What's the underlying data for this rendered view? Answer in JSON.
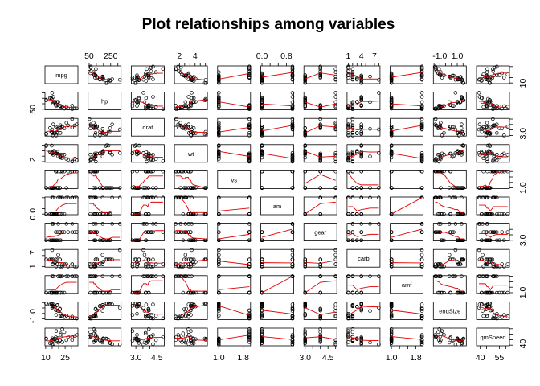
{
  "chart_data": {
    "type": "scatter",
    "subtype": "pairs-matrix-with-smoother",
    "title": "Plot relationships among variables",
    "variables": [
      "mpg",
      "hp",
      "drat",
      "wt",
      "vs",
      "am",
      "gear",
      "carb",
      "amf",
      "engSize",
      "qmSpeed"
    ],
    "ranges": {
      "mpg": [
        10.4,
        33.9
      ],
      "hp": [
        52,
        335
      ],
      "drat": [
        2.76,
        4.93
      ],
      "wt": [
        1.513,
        5.424
      ],
      "vs": [
        1,
        2
      ],
      "am": [
        0,
        1
      ],
      "gear": [
        3,
        5
      ],
      "carb": [
        1,
        8
      ],
      "amf": [
        1,
        2
      ],
      "engSize": [
        -1.6,
        1.9
      ],
      "qmSpeed": [
        38,
        62
      ]
    },
    "axis_ticks": [
      {
        "variable": "mpg",
        "side": "bottom",
        "labels": [
          "10",
          "25"
        ],
        "values": [
          10,
          25
        ]
      },
      {
        "variable": "hp",
        "side": "top",
        "labels": [
          "50",
          "250"
        ],
        "values": [
          50,
          250
        ]
      },
      {
        "variable": "drat",
        "side": "bottom",
        "labels": [
          "3.0",
          "4.5"
        ],
        "values": [
          3.0,
          4.5
        ]
      },
      {
        "variable": "wt",
        "side": "top",
        "labels": [
          "2",
          "4"
        ],
        "values": [
          2,
          4
        ]
      },
      {
        "variable": "vs",
        "side": "bottom",
        "labels": [
          "1.0",
          "1.8"
        ],
        "values": [
          1.0,
          1.8
        ]
      },
      {
        "variable": "am",
        "side": "top",
        "labels": [
          "0.0",
          "0.8"
        ],
        "values": [
          0.0,
          0.8
        ]
      },
      {
        "variable": "gear",
        "side": "bottom",
        "labels": [
          "3.0",
          "4.5"
        ],
        "values": [
          3.0,
          4.5
        ]
      },
      {
        "variable": "carb",
        "side": "top",
        "labels": [
          "1",
          "4",
          "7"
        ],
        "values": [
          1,
          4,
          7
        ]
      },
      {
        "variable": "amf",
        "side": "bottom",
        "labels": [
          "1.0",
          "1.8"
        ],
        "values": [
          1.0,
          1.8
        ]
      },
      {
        "variable": "engSize",
        "side": "top",
        "labels": [
          "-1.0",
          "1.0"
        ],
        "values": [
          -1.0,
          1.0
        ]
      },
      {
        "variable": "qmSpeed",
        "side": "bottom",
        "labels": [
          "40",
          "55"
        ],
        "values": [
          40,
          55
        ]
      },
      {
        "variable": "mpg",
        "side": "right",
        "labels": [
          "10"
        ],
        "values": [
          10
        ]
      },
      {
        "variable": "hp",
        "side": "left",
        "labels": [
          "50"
        ],
        "values": [
          50
        ]
      },
      {
        "variable": "drat",
        "side": "right",
        "labels": [
          "3.0"
        ],
        "values": [
          3.0
        ]
      },
      {
        "variable": "wt",
        "side": "left",
        "labels": [
          "2"
        ],
        "values": [
          2
        ]
      },
      {
        "variable": "vs",
        "side": "right",
        "labels": [
          "1.0"
        ],
        "values": [
          1.0
        ]
      },
      {
        "variable": "am",
        "side": "left",
        "labels": [
          "0.0"
        ],
        "values": [
          0.0
        ]
      },
      {
        "variable": "gear",
        "side": "right",
        "labels": [
          "3.0"
        ],
        "values": [
          3.0
        ]
      },
      {
        "variable": "carb",
        "side": "left",
        "labels": [
          "1",
          "7"
        ],
        "values": [
          1,
          7
        ]
      },
      {
        "variable": "amf",
        "side": "right",
        "labels": [
          "1.0"
        ],
        "values": [
          1.0
        ]
      },
      {
        "variable": "engSize",
        "side": "left",
        "labels": [
          "-1.0"
        ],
        "values": [
          -1.0
        ]
      },
      {
        "variable": "qmSpeed",
        "side": "right",
        "labels": [
          "40"
        ],
        "values": [
          40
        ]
      }
    ],
    "observations": [
      {
        "mpg": 21.0,
        "hp": 110,
        "drat": 3.9,
        "wt": 2.62,
        "vs": 1,
        "am": 1,
        "gear": 4,
        "carb": 4,
        "amf": 2,
        "engSize": 0.46,
        "qmSpeed": 44.6
      },
      {
        "mpg": 21.0,
        "hp": 110,
        "drat": 3.9,
        "wt": 2.875,
        "vs": 1,
        "am": 1,
        "gear": 4,
        "carb": 4,
        "amf": 2,
        "engSize": 0.59,
        "qmSpeed": 45.2
      },
      {
        "mpg": 22.8,
        "hp": 93,
        "drat": 3.85,
        "wt": 2.32,
        "vs": 2,
        "am": 1,
        "gear": 4,
        "carb": 1,
        "amf": 2,
        "engSize": -0.98,
        "qmSpeed": 42.5
      },
      {
        "mpg": 21.4,
        "hp": 110,
        "drat": 3.08,
        "wt": 3.215,
        "vs": 2,
        "am": 0,
        "gear": 3,
        "carb": 1,
        "amf": 1,
        "engSize": -0.52,
        "qmSpeed": 53.1
      },
      {
        "mpg": 18.7,
        "hp": 175,
        "drat": 3.15,
        "wt": 3.44,
        "vs": 1,
        "am": 0,
        "gear": 3,
        "carb": 2,
        "amf": 1,
        "engSize": 1.32,
        "qmSpeed": 44.0
      },
      {
        "mpg": 18.1,
        "hp": 105,
        "drat": 2.76,
        "wt": 3.46,
        "vs": 2,
        "am": 0,
        "gear": 3,
        "carb": 1,
        "amf": 1,
        "engSize": -0.75,
        "qmSpeed": 58.7
      },
      {
        "mpg": 14.3,
        "hp": 245,
        "drat": 3.21,
        "wt": 3.57,
        "vs": 1,
        "am": 0,
        "gear": 3,
        "carb": 4,
        "amf": 1,
        "engSize": 1.55,
        "qmSpeed": 41.3
      },
      {
        "mpg": 24.4,
        "hp": 62,
        "drat": 3.69,
        "wt": 3.19,
        "vs": 2,
        "am": 0,
        "gear": 4,
        "carb": 2,
        "amf": 1,
        "engSize": -1.2,
        "qmSpeed": 57.1
      },
      {
        "mpg": 22.8,
        "hp": 95,
        "drat": 3.92,
        "wt": 3.15,
        "vs": 2,
        "am": 0,
        "gear": 4,
        "carb": 2,
        "amf": 1,
        "engSize": -1.05,
        "qmSpeed": 61.5
      },
      {
        "mpg": 19.2,
        "hp": 123,
        "drat": 3.92,
        "wt": 3.44,
        "vs": 2,
        "am": 0,
        "gear": 4,
        "carb": 4,
        "amf": 1,
        "engSize": 0.2,
        "qmSpeed": 48.2
      },
      {
        "mpg": 17.8,
        "hp": 123,
        "drat": 3.92,
        "wt": 3.44,
        "vs": 2,
        "am": 0,
        "gear": 4,
        "carb": 4,
        "amf": 1,
        "engSize": 0.25,
        "qmSpeed": 49.6
      },
      {
        "mpg": 16.4,
        "hp": 180,
        "drat": 3.07,
        "wt": 4.07,
        "vs": 1,
        "am": 0,
        "gear": 3,
        "carb": 3,
        "amf": 1,
        "engSize": 1.05,
        "qmSpeed": 46.8
      },
      {
        "mpg": 17.3,
        "hp": 180,
        "drat": 3.07,
        "wt": 3.73,
        "vs": 1,
        "am": 0,
        "gear": 3,
        "carb": 3,
        "amf": 1,
        "engSize": 1.0,
        "qmSpeed": 47.2
      },
      {
        "mpg": 15.2,
        "hp": 180,
        "drat": 3.07,
        "wt": 3.78,
        "vs": 1,
        "am": 0,
        "gear": 3,
        "carb": 3,
        "amf": 1,
        "engSize": 1.02,
        "qmSpeed": 47.9
      },
      {
        "mpg": 10.4,
        "hp": 205,
        "drat": 2.93,
        "wt": 5.25,
        "vs": 1,
        "am": 0,
        "gear": 3,
        "carb": 4,
        "amf": 1,
        "engSize": 1.72,
        "qmSpeed": 47.7
      },
      {
        "mpg": 10.4,
        "hp": 215,
        "drat": 3.0,
        "wt": 5.424,
        "vs": 1,
        "am": 0,
        "gear": 3,
        "carb": 4,
        "amf": 1,
        "engSize": 1.68,
        "qmSpeed": 47.2
      },
      {
        "mpg": 14.7,
        "hp": 230,
        "drat": 3.23,
        "wt": 5.345,
        "vs": 1,
        "am": 0,
        "gear": 3,
        "carb": 4,
        "amf": 1,
        "engSize": 1.6,
        "qmSpeed": 46.0
      },
      {
        "mpg": 32.4,
        "hp": 66,
        "drat": 4.08,
        "wt": 2.2,
        "vs": 2,
        "am": 1,
        "gear": 4,
        "carb": 1,
        "amf": 2,
        "engSize": -1.45,
        "qmSpeed": 51.3
      },
      {
        "mpg": 30.4,
        "hp": 52,
        "drat": 4.93,
        "wt": 1.615,
        "vs": 2,
        "am": 1,
        "gear": 4,
        "carb": 2,
        "amf": 2,
        "engSize": -1.48,
        "qmSpeed": 49.9
      },
      {
        "mpg": 33.9,
        "hp": 65,
        "drat": 4.22,
        "wt": 1.835,
        "vs": 2,
        "am": 1,
        "gear": 4,
        "carb": 1,
        "amf": 2,
        "engSize": -1.52,
        "qmSpeed": 53.0
      },
      {
        "mpg": 21.5,
        "hp": 97,
        "drat": 3.7,
        "wt": 2.465,
        "vs": 2,
        "am": 0,
        "gear": 3,
        "carb": 1,
        "amf": 1,
        "engSize": -0.85,
        "qmSpeed": 55.1
      },
      {
        "mpg": 15.5,
        "hp": 150,
        "drat": 2.76,
        "wt": 3.52,
        "vs": 1,
        "am": 0,
        "gear": 3,
        "carb": 2,
        "amf": 1,
        "engSize": 1.2,
        "qmSpeed": 44.6
      },
      {
        "mpg": 15.2,
        "hp": 150,
        "drat": 3.15,
        "wt": 3.435,
        "vs": 1,
        "am": 0,
        "gear": 3,
        "carb": 2,
        "amf": 1,
        "engSize": 1.1,
        "qmSpeed": 45.8
      },
      {
        "mpg": 13.3,
        "hp": 245,
        "drat": 3.73,
        "wt": 3.84,
        "vs": 1,
        "am": 0,
        "gear": 3,
        "carb": 4,
        "amf": 1,
        "engSize": 1.48,
        "qmSpeed": 40.9
      },
      {
        "mpg": 19.2,
        "hp": 175,
        "drat": 3.08,
        "wt": 3.845,
        "vs": 1,
        "am": 0,
        "gear": 3,
        "carb": 2,
        "amf": 1,
        "engSize": 1.38,
        "qmSpeed": 45.2
      },
      {
        "mpg": 27.3,
        "hp": 66,
        "drat": 4.08,
        "wt": 1.935,
        "vs": 2,
        "am": 1,
        "gear": 4,
        "carb": 1,
        "amf": 2,
        "engSize": -1.4,
        "qmSpeed": 50.2
      },
      {
        "mpg": 26.0,
        "hp": 91,
        "drat": 4.43,
        "wt": 2.14,
        "vs": 1,
        "am": 1,
        "gear": 5,
        "carb": 2,
        "amf": 2,
        "engSize": -0.9,
        "qmSpeed": 45.3
      },
      {
        "mpg": 30.4,
        "hp": 113,
        "drat": 3.77,
        "wt": 1.513,
        "vs": 2,
        "am": 1,
        "gear": 5,
        "carb": 2,
        "amf": 2,
        "engSize": -1.1,
        "qmSpeed": 45.5
      },
      {
        "mpg": 15.8,
        "hp": 264,
        "drat": 4.22,
        "wt": 3.17,
        "vs": 1,
        "am": 1,
        "gear": 5,
        "carb": 4,
        "amf": 2,
        "engSize": 1.5,
        "qmSpeed": 39.5
      },
      {
        "mpg": 19.7,
        "hp": 175,
        "drat": 3.62,
        "wt": 2.77,
        "vs": 1,
        "am": 1,
        "gear": 5,
        "carb": 6,
        "amf": 2,
        "engSize": 0.1,
        "qmSpeed": 41.8
      },
      {
        "mpg": 15.0,
        "hp": 335,
        "drat": 3.54,
        "wt": 3.57,
        "vs": 1,
        "am": 1,
        "gear": 5,
        "carb": 8,
        "amf": 2,
        "engSize": 0.8,
        "qmSpeed": 39.0
      },
      {
        "mpg": 21.4,
        "hp": 109,
        "drat": 4.11,
        "wt": 2.78,
        "vs": 2,
        "am": 1,
        "gear": 4,
        "carb": 2,
        "amf": 2,
        "engSize": -0.95,
        "qmSpeed": 50.8
      }
    ]
  }
}
